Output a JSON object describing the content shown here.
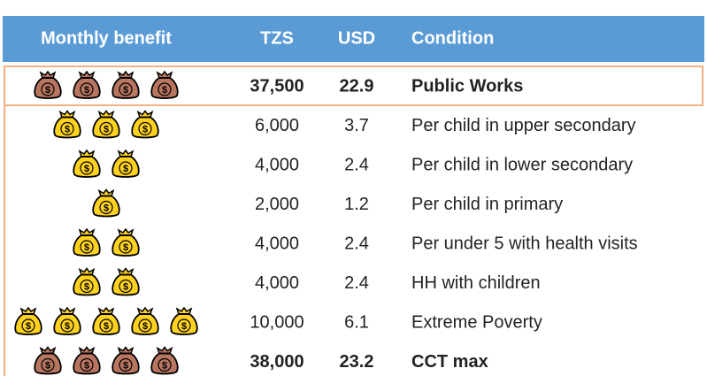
{
  "table": {
    "header": [
      "Monthly benefit",
      "TZS",
      "USD",
      "Condition"
    ],
    "rows": [
      [
        "37,500",
        "22.9",
        "Public Works"
      ],
      [
        "6,000",
        "3.7",
        "Per child in upper secondary"
      ],
      [
        "4,000",
        "2.4",
        "Per child in lower secondary"
      ],
      [
        "2,000",
        "1.2",
        "Per child in primary"
      ],
      [
        "4,000",
        "2.4",
        "Per under 5 with health visits"
      ],
      [
        "4,000",
        "2.4",
        "HH with children"
      ],
      [
        "10,000",
        "6.1",
        "Extreme Poverty"
      ],
      [
        "38,000",
        "23.2",
        "CCT max"
      ]
    ]
  }
}
